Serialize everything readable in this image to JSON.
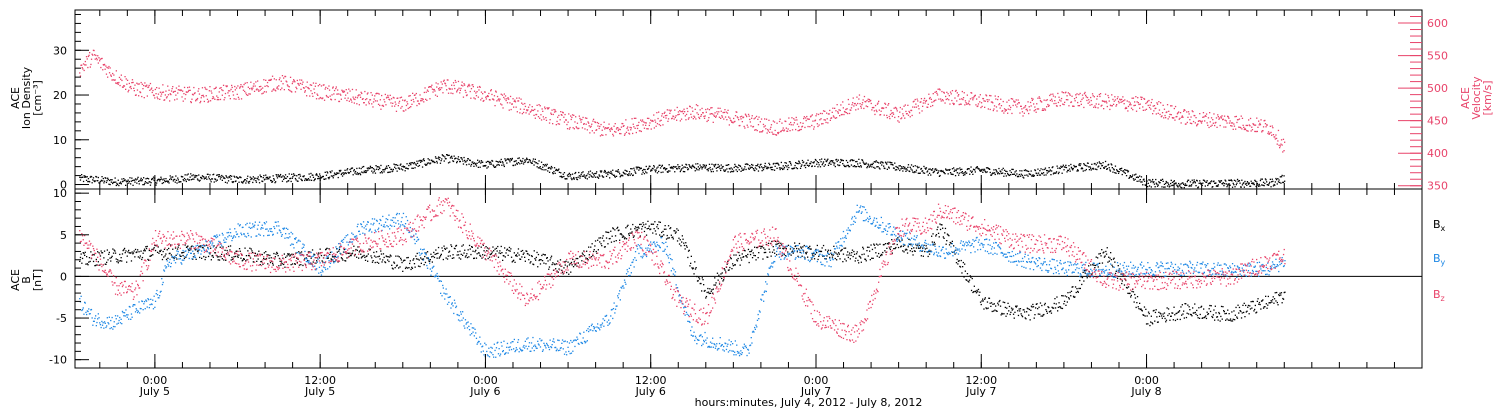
{
  "chart_data": [
    {
      "type": "scatter",
      "panel": "top",
      "ylabel_left": [
        "ACE",
        "Ion Density",
        "[cm⁻³]"
      ],
      "ylabel_right": [
        "ACE",
        "Velocity",
        "[km/s]"
      ],
      "ylim_left": [
        -1,
        39
      ],
      "ylim_right": [
        345,
        620
      ],
      "yticks_left": [
        0,
        10,
        20,
        30
      ],
      "yticks_right": [
        350,
        400,
        450,
        500,
        550,
        600
      ],
      "grid": false,
      "series": [
        {
          "axis": "left",
          "color": "#000000",
          "x": [
            -5.5,
            -3,
            0,
            3,
            6,
            9,
            12,
            15,
            18,
            21,
            24,
            27,
            30,
            33,
            36,
            39,
            42,
            45,
            48,
            51,
            54,
            57,
            60,
            63,
            66,
            69,
            72,
            75,
            78,
            81,
            82
          ],
          "values": [
            1.5,
            0.8,
            0.9,
            1.8,
            1.2,
            1.5,
            2,
            3.3,
            4,
            6,
            4.5,
            5.7,
            2,
            2.5,
            3.5,
            4,
            3.8,
            4.1,
            5,
            5,
            4,
            2.8,
            3.3,
            2.5,
            3.6,
            4.5,
            0.5,
            0.3,
            0.4,
            0.5,
            1.5
          ]
        },
        {
          "axis": "right",
          "color": "#e8436a",
          "x": [
            -5.5,
            -4.5,
            -3,
            -1.5,
            0,
            3,
            6,
            9,
            12,
            15,
            18,
            21,
            24,
            27,
            30,
            33,
            36,
            39,
            42,
            45,
            48,
            51,
            54,
            57,
            60,
            63,
            66,
            69,
            72,
            75,
            78,
            81,
            82
          ],
          "values": [
            530,
            550,
            520,
            500,
            495,
            490,
            495,
            510,
            495,
            485,
            475,
            505,
            490,
            470,
            450,
            435,
            450,
            465,
            455,
            440,
            450,
            480,
            460,
            490,
            480,
            470,
            485,
            480,
            475,
            455,
            450,
            440,
            410
          ]
        }
      ]
    },
    {
      "type": "scatter",
      "panel": "bottom",
      "ylabel": [
        "ACE",
        "B",
        "[nT]"
      ],
      "ylim": [
        -11,
        10.5
      ],
      "yticks": [
        -10,
        -5,
        0,
        5,
        10
      ],
      "zero_line": true,
      "legend": "right",
      "legend_labels": [
        {
          "name": "B",
          "sub": "x",
          "color": "#000000"
        },
        {
          "name": "B",
          "sub": "y",
          "color": "#1e88e5"
        },
        {
          "name": "B",
          "sub": "z",
          "color": "#e8436a"
        }
      ],
      "series": [
        {
          "name_index": 0,
          "color": "#000000",
          "x": [
            -5.5,
            -3,
            0,
            3,
            6,
            9,
            12,
            15,
            18,
            21,
            24,
            27,
            30,
            33,
            36,
            38,
            40,
            42,
            45,
            48,
            51,
            54,
            56,
            57,
            60,
            63,
            66,
            69,
            72,
            75,
            78,
            81,
            82
          ],
          "values": [
            2,
            2.5,
            3,
            3,
            2.8,
            2,
            2.5,
            3,
            1.5,
            3,
            3,
            2.5,
            1,
            5,
            6,
            5,
            -2,
            2,
            3.5,
            3,
            2.5,
            4,
            3,
            6,
            -3,
            -4.5,
            -3,
            3,
            -5,
            -4,
            -4.5,
            -3,
            -2
          ]
        },
        {
          "name_index": 1,
          "color": "#1e88e5",
          "x": [
            -5.5,
            -4.5,
            -3,
            -1.5,
            0,
            1,
            3,
            6,
            9,
            12,
            15,
            18,
            21,
            24,
            27,
            30,
            33,
            35,
            37,
            39,
            41,
            43,
            45,
            47,
            49,
            51,
            54,
            57,
            60,
            63,
            66,
            69,
            72,
            75,
            78,
            81,
            82
          ],
          "values": [
            -3,
            -5,
            -5.5,
            -4,
            -3,
            2,
            3,
            5.5,
            6,
            1,
            6,
            7,
            -2,
            -9,
            -8,
            -8.5,
            -5,
            3,
            4,
            -7,
            -8,
            -9,
            3,
            3,
            2,
            8,
            5,
            3,
            4,
            2,
            1,
            0.8,
            1,
            1,
            0.8,
            1,
            2
          ]
        },
        {
          "name_index": 2,
          "color": "#e8436a",
          "x": [
            -5.5,
            -4.5,
            -3,
            -1.5,
            0,
            3,
            6,
            9,
            12,
            15,
            18,
            21,
            22,
            24,
            27,
            30,
            33,
            35,
            36,
            38,
            40,
            42,
            45,
            48,
            51,
            54,
            56,
            57,
            60,
            63,
            66,
            69,
            72,
            75,
            78,
            81,
            82
          ],
          "values": [
            5,
            3,
            -1,
            -2,
            4.5,
            4.5,
            2,
            1.5,
            2,
            4,
            5,
            9,
            7,
            3,
            -3,
            2,
            2,
            5,
            3,
            -3,
            -5,
            4,
            5,
            -5,
            -7,
            6,
            6,
            8,
            6,
            4,
            4,
            -0.5,
            -0.5,
            -0.3,
            0,
            2,
            2.5
          ]
        }
      ]
    },
    {
      "type": "axis",
      "x_range_hours": [
        -5.8,
        92
      ],
      "xticks": [
        {
          "hour": 0,
          "time": "0:00",
          "date": "July 5"
        },
        {
          "hour": 12,
          "time": "12:00",
          "date": "July 5"
        },
        {
          "hour": 24,
          "time": "0:00",
          "date": "July 6"
        },
        {
          "hour": 36,
          "time": "12:00",
          "date": "July 6"
        },
        {
          "hour": 48,
          "time": "0:00",
          "date": "July 7"
        },
        {
          "hour": 60,
          "time": "12:00",
          "date": "July 7"
        },
        {
          "hour": 72,
          "time": "0:00",
          "date": "July 8"
        }
      ],
      "xlabel": "hours:minutes, July  4, 2012 - July  8, 2012"
    }
  ]
}
